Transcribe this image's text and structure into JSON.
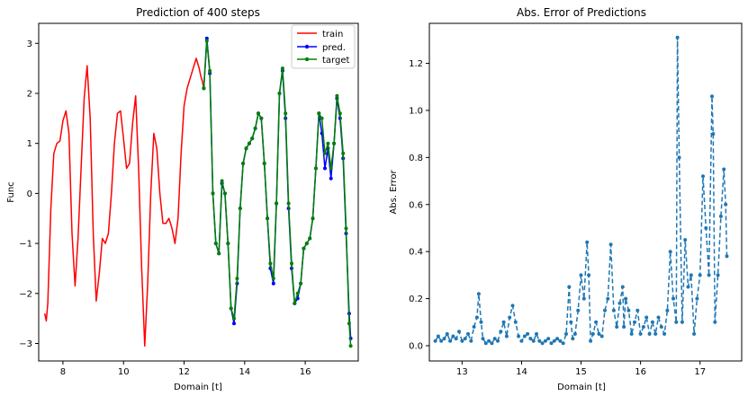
{
  "chart_data": [
    {
      "type": "line",
      "title": "Prediction of 400 steps",
      "xlabel": "Domain [t]",
      "ylabel": "Func",
      "xlim": [
        7.2,
        17.75
      ],
      "ylim": [
        -3.35,
        3.4
      ],
      "xticks": [
        8,
        10,
        12,
        14,
        16
      ],
      "yticks": [
        -3,
        -2,
        -1,
        0,
        1,
        2,
        3
      ],
      "tick_labels_x": [
        "8",
        "10",
        "12",
        "14",
        "16"
      ],
      "tick_labels_y": [
        "−3",
        "−2",
        "−1",
        "0",
        "1",
        "2",
        "3"
      ],
      "legend": {
        "position": "top-right",
        "entries": [
          "train",
          "pred.",
          "target"
        ]
      },
      "series": [
        {
          "name": "train",
          "color": "#ff0000",
          "marker": "none",
          "x": [
            7.4,
            7.45,
            7.5,
            7.6,
            7.7,
            7.8,
            7.9,
            8.0,
            8.1,
            8.2,
            8.3,
            8.4,
            8.5,
            8.6,
            8.7,
            8.8,
            8.9,
            9.0,
            9.1,
            9.2,
            9.3,
            9.4,
            9.5,
            9.6,
            9.7,
            9.8,
            9.9,
            10.0,
            10.1,
            10.2,
            10.3,
            10.4,
            10.5,
            10.6,
            10.7,
            10.8,
            10.9,
            11.0,
            11.1,
            11.2,
            11.3,
            11.4,
            11.5,
            11.6,
            11.7,
            11.8,
            11.9,
            12.0,
            12.1,
            12.2,
            12.3,
            12.4,
            12.5,
            12.55,
            12.6,
            12.65
          ],
          "y": [
            -2.4,
            -2.55,
            -2.2,
            -0.3,
            0.8,
            1.0,
            1.05,
            1.45,
            1.65,
            1.2,
            -0.8,
            -1.85,
            -0.9,
            0.5,
            1.9,
            2.55,
            1.5,
            -0.8,
            -2.15,
            -1.6,
            -0.9,
            -1.0,
            -0.8,
            0.0,
            1.0,
            1.6,
            1.65,
            1.1,
            0.5,
            0.6,
            1.4,
            1.95,
            0.5,
            -1.5,
            -3.05,
            -1.8,
            0.0,
            1.2,
            0.9,
            0.0,
            -0.6,
            -0.6,
            -0.5,
            -0.7,
            -1.0,
            -0.5,
            0.8,
            1.75,
            2.1,
            2.3,
            2.5,
            2.7,
            2.5,
            2.35,
            2.25,
            2.1
          ]
        },
        {
          "name": "pred.",
          "color": "#0000ff",
          "marker": "dot",
          "x": [
            12.65,
            12.75,
            12.85,
            12.95,
            13.05,
            13.15,
            13.25,
            13.35,
            13.45,
            13.55,
            13.65,
            13.75,
            13.85,
            13.95,
            14.05,
            14.15,
            14.25,
            14.35,
            14.45,
            14.55,
            14.65,
            14.75,
            14.85,
            14.95,
            15.05,
            15.15,
            15.25,
            15.35,
            15.45,
            15.55,
            15.65,
            15.75,
            15.85,
            15.95,
            16.05,
            16.15,
            16.25,
            16.35,
            16.45,
            16.55,
            16.65,
            16.75,
            16.85,
            16.95,
            17.05,
            17.15,
            17.25,
            17.35,
            17.45,
            17.5
          ],
          "y": [
            2.1,
            3.1,
            2.4,
            0.0,
            -1.0,
            -1.2,
            0.2,
            0.0,
            -1.0,
            -2.3,
            -2.6,
            -1.8,
            -0.3,
            0.6,
            0.9,
            1.0,
            1.1,
            1.3,
            1.6,
            1.5,
            0.6,
            -0.5,
            -1.5,
            -1.8,
            -0.2,
            2.0,
            2.45,
            1.5,
            -0.3,
            -1.5,
            -2.2,
            -2.1,
            -1.8,
            -1.1,
            -1.0,
            -0.9,
            -0.5,
            0.5,
            1.6,
            1.2,
            0.5,
            0.9,
            0.3,
            1.0,
            1.9,
            1.5,
            0.7,
            -0.8,
            -2.4,
            -2.9
          ]
        },
        {
          "name": "target",
          "color": "#008000",
          "marker": "dot",
          "x": [
            12.65,
            12.75,
            12.85,
            12.95,
            13.05,
            13.15,
            13.25,
            13.35,
            13.45,
            13.55,
            13.65,
            13.75,
            13.85,
            13.95,
            14.05,
            14.15,
            14.25,
            14.35,
            14.45,
            14.55,
            14.65,
            14.75,
            14.85,
            14.95,
            15.05,
            15.15,
            15.25,
            15.35,
            15.45,
            15.55,
            15.65,
            15.75,
            15.85,
            15.95,
            16.05,
            16.15,
            16.25,
            16.35,
            16.45,
            16.55,
            16.65,
            16.75,
            16.85,
            16.95,
            17.05,
            17.15,
            17.25,
            17.35,
            17.45,
            17.5
          ],
          "y": [
            2.1,
            3.05,
            2.45,
            0.0,
            -1.0,
            -1.2,
            0.25,
            0.0,
            -1.0,
            -2.3,
            -2.5,
            -1.7,
            -0.3,
            0.6,
            0.9,
            1.0,
            1.1,
            1.3,
            1.6,
            1.5,
            0.6,
            -0.5,
            -1.4,
            -1.7,
            -0.2,
            2.0,
            2.5,
            1.6,
            -0.2,
            -1.4,
            -2.2,
            -2.0,
            -1.8,
            -1.1,
            -1.0,
            -0.9,
            -0.5,
            0.5,
            1.6,
            1.5,
            0.8,
            1.0,
            0.5,
            1.0,
            1.95,
            1.6,
            0.8,
            -0.7,
            -2.6,
            -3.05
          ]
        }
      ]
    },
    {
      "type": "line",
      "title": "Abs. Error of Predictions",
      "xlabel": "Domain [t]",
      "ylabel": "Abs. Error",
      "xlim": [
        12.45,
        17.7
      ],
      "ylim": [
        -0.065,
        1.37
      ],
      "xticks": [
        13,
        14,
        15,
        16,
        17
      ],
      "yticks": [
        0.0,
        0.2,
        0.4,
        0.6,
        0.8,
        1.0,
        1.2
      ],
      "tick_labels_x": [
        "13",
        "14",
        "15",
        "16",
        "17"
      ],
      "tick_labels_y": [
        "0.0",
        "0.2",
        "0.4",
        "0.6",
        "0.8",
        "1.0",
        "1.2"
      ],
      "series": [
        {
          "name": "",
          "color": "#1f77b4",
          "marker": "dot",
          "linestyle": "dashed",
          "x": [
            12.55,
            12.6,
            12.65,
            12.7,
            12.75,
            12.8,
            12.85,
            12.9,
            12.95,
            13.0,
            13.05,
            13.1,
            13.15,
            13.2,
            13.25,
            13.28,
            13.32,
            13.35,
            13.4,
            13.45,
            13.5,
            13.55,
            13.6,
            13.65,
            13.7,
            13.75,
            13.8,
            13.85,
            13.9,
            13.95,
            14.0,
            14.05,
            14.1,
            14.15,
            14.2,
            14.25,
            14.3,
            14.35,
            14.4,
            14.45,
            14.5,
            14.55,
            14.6,
            14.65,
            14.7,
            14.75,
            14.8,
            14.83,
            14.86,
            14.9,
            14.95,
            15.0,
            15.05,
            15.1,
            15.13,
            15.16,
            15.2,
            15.25,
            15.3,
            15.35,
            15.4,
            15.45,
            15.5,
            15.55,
            15.6,
            15.65,
            15.7,
            15.72,
            15.75,
            15.8,
            15.85,
            15.9,
            15.95,
            16.0,
            16.05,
            16.1,
            16.15,
            16.2,
            16.25,
            16.3,
            16.35,
            16.4,
            16.45,
            16.5,
            16.55,
            16.6,
            16.62,
            16.65,
            16.7,
            16.75,
            16.8,
            16.85,
            16.9,
            16.95,
            17.0,
            17.05,
            17.1,
            17.15,
            17.2,
            17.22,
            17.25,
            17.3,
            17.35,
            17.4,
            17.43,
            17.45
          ],
          "y": [
            0.02,
            0.04,
            0.02,
            0.03,
            0.05,
            0.02,
            0.04,
            0.03,
            0.06,
            0.02,
            0.03,
            0.05,
            0.02,
            0.08,
            0.12,
            0.22,
            0.1,
            0.03,
            0.01,
            0.02,
            0.01,
            0.03,
            0.02,
            0.06,
            0.1,
            0.04,
            0.12,
            0.17,
            0.1,
            0.04,
            0.02,
            0.04,
            0.05,
            0.03,
            0.02,
            0.05,
            0.02,
            0.01,
            0.02,
            0.03,
            0.01,
            0.02,
            0.03,
            0.02,
            0.01,
            0.05,
            0.25,
            0.1,
            0.03,
            0.05,
            0.15,
            0.3,
            0.2,
            0.44,
            0.3,
            0.02,
            0.05,
            0.1,
            0.05,
            0.04,
            0.15,
            0.2,
            0.43,
            0.15,
            0.08,
            0.18,
            0.25,
            0.08,
            0.2,
            0.15,
            0.05,
            0.1,
            0.15,
            0.05,
            0.08,
            0.12,
            0.05,
            0.1,
            0.05,
            0.12,
            0.08,
            0.05,
            0.15,
            0.4,
            0.2,
            0.1,
            1.31,
            0.8,
            0.1,
            0.45,
            0.25,
            0.3,
            0.05,
            0.2,
            0.3,
            0.72,
            0.5,
            0.3,
            1.06,
            0.9,
            0.1,
            0.3,
            0.55,
            0.75,
            0.6,
            0.38
          ]
        }
      ]
    }
  ]
}
